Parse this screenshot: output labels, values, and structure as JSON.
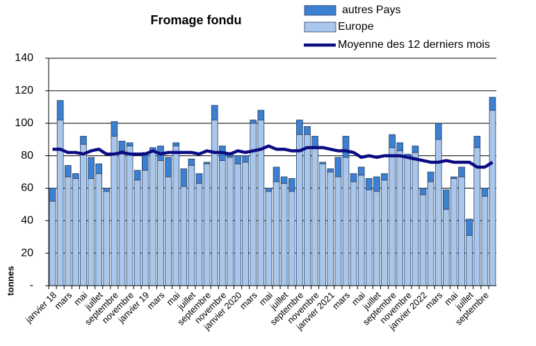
{
  "chart_data": {
    "type": "bar",
    "stacked": true,
    "title": "Fromage fondu",
    "y_label": "tonnes",
    "categories": [
      "janvier 18",
      null,
      "mars",
      null,
      "mai",
      null,
      "juillet",
      null,
      "septembre",
      null,
      "novembre",
      null,
      "janvier 19",
      null,
      "mars",
      null,
      "mai",
      null,
      "juillet",
      null,
      "septembre",
      null,
      "novembre",
      null,
      "janvier 2020",
      null,
      "mars",
      null,
      "mai",
      null,
      "juillet",
      null,
      "septembre",
      null,
      "novembre",
      null,
      "janvier 2021",
      null,
      "mars",
      null,
      "mai",
      null,
      "juillet",
      null,
      "septembre",
      null,
      "novembre",
      null,
      "janvier 2022",
      null,
      "mars",
      null,
      "mai",
      null,
      "juillet",
      null,
      "septembre",
      null
    ],
    "series": [
      {
        "name": "Europe",
        "color": "#a9c6ec",
        "values": [
          52,
          102,
          67,
          66,
          87,
          66,
          69,
          58,
          92,
          83,
          86,
          65,
          71,
          83,
          77,
          67,
          86,
          61,
          74,
          63,
          75,
          102,
          77,
          79,
          75,
          76,
          100,
          102,
          58,
          64,
          63,
          58,
          93,
          93,
          85,
          75,
          70,
          67,
          79,
          64,
          68,
          59,
          58,
          65,
          85,
          83,
          79,
          82,
          56,
          64,
          90,
          47,
          66,
          67,
          31,
          85,
          55,
          108
        ]
      },
      {
        "name": "autres Pays",
        "color": "#3c80d2",
        "values": [
          8,
          12,
          7,
          3,
          5,
          13,
          6,
          2,
          9,
          6,
          2,
          6,
          11,
          2,
          9,
          12,
          2,
          11,
          4,
          6,
          1,
          9,
          9,
          3,
          5,
          4,
          2,
          6,
          2,
          9,
          4,
          8,
          9,
          5,
          7,
          1,
          2,
          12,
          13,
          5,
          5,
          7,
          9,
          4,
          8,
          5,
          2,
          4,
          4,
          6,
          10,
          12,
          1,
          6,
          10,
          7,
          5,
          8
        ]
      },
      {
        "name": "Moyenne des 12 derniers mois",
        "type": "line",
        "color": "#0c0c82",
        "values": [
          84,
          84,
          82,
          82,
          81,
          83,
          84,
          81,
          81,
          82,
          81,
          81,
          81,
          83,
          81,
          82,
          82,
          82,
          82,
          81,
          83,
          82,
          82,
          81,
          83,
          82,
          83,
          84,
          86,
          84,
          84,
          83,
          83,
          85,
          85,
          85,
          84,
          83,
          83,
          82,
          79,
          80,
          79,
          80,
          80,
          80,
          79,
          78,
          77,
          76,
          76,
          77,
          76,
          76,
          76,
          73,
          73,
          76
        ]
      }
    ],
    "ylim": [
      0,
      140
    ],
    "yticks": [
      {
        "value": 0,
        "label": "-"
      },
      20,
      40,
      60,
      80,
      100,
      120,
      140
    ],
    "grid": true
  }
}
